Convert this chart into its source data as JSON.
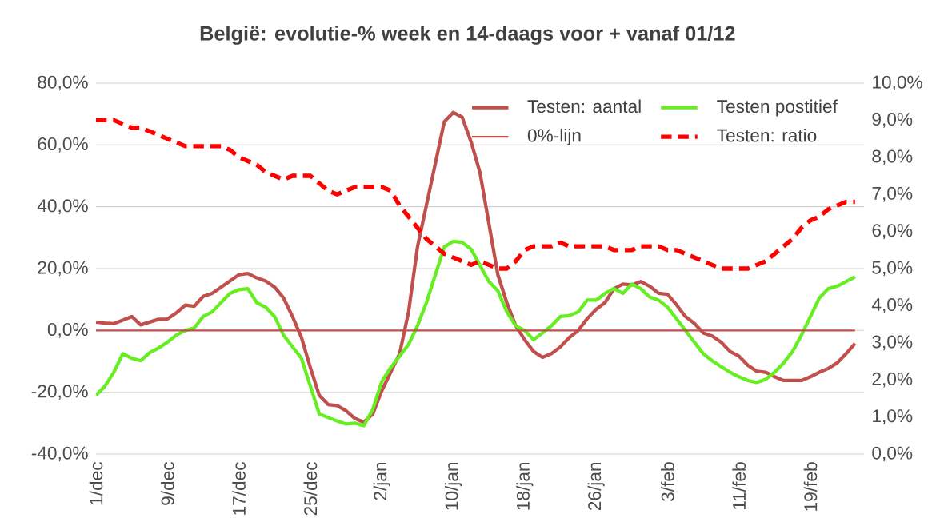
{
  "chart_data": {
    "type": "line",
    "title": "België: evolutie-%  week en 14-daags voor + vanaf 01/12",
    "categories": [
      "1/dec",
      null,
      null,
      null,
      null,
      null,
      null,
      null,
      "9/dec",
      null,
      null,
      null,
      null,
      null,
      null,
      null,
      "17/dec",
      null,
      null,
      null,
      null,
      null,
      null,
      null,
      "25/dec",
      null,
      null,
      null,
      null,
      null,
      null,
      null,
      "2/jan",
      null,
      null,
      null,
      null,
      null,
      null,
      null,
      "10/jan",
      null,
      null,
      null,
      null,
      null,
      null,
      null,
      "18/jan",
      null,
      null,
      null,
      null,
      null,
      null,
      null,
      "26/jan",
      null,
      null,
      null,
      null,
      null,
      null,
      null,
      "3/feb",
      null,
      null,
      null,
      null,
      null,
      null,
      null,
      "11/feb",
      null,
      null,
      null,
      null,
      null,
      null,
      null,
      "19/feb",
      null,
      null,
      null,
      null,
      null
    ],
    "series": [
      {
        "name": "Testen: aantal",
        "color": "#c0504d",
        "values": [
          2.7,
          2.4,
          2.2,
          3.3,
          4.5,
          1.8,
          2.7,
          3.6,
          3.7,
          5.7,
          8.2,
          7.8,
          11,
          12,
          14,
          16,
          18,
          18.4,
          17,
          16,
          14,
          10.5,
          4.5,
          -2.2,
          -12,
          -21,
          -24,
          -24.3,
          -26,
          -28.5,
          -29.7,
          -27,
          -19.5,
          -13.5,
          -7.5,
          6,
          27,
          40.5,
          54,
          67.5,
          70.5,
          69,
          61,
          51,
          34.5,
          18,
          9,
          1.5,
          -3,
          -6.8,
          -8.7,
          -7.5,
          -5.3,
          -2.3,
          0,
          3.8,
          6.8,
          9,
          13.5,
          15,
          14.7,
          15.8,
          14.3,
          12,
          11.7,
          8.3,
          4.5,
          2.3,
          -0.8,
          -1.8,
          -3.8,
          -6.8,
          -8.3,
          -11.3,
          -13.2,
          -13.5,
          -15,
          -16.2,
          -16.2,
          -16.2,
          -15,
          -13.5,
          -12.3,
          -10.5,
          -7.5,
          -4.2
        ]
      },
      {
        "name": "Testen postitief",
        "color": "#66ee22",
        "values": [
          -21,
          -18,
          -13.5,
          -7.5,
          -9,
          -9.8,
          -7.2,
          -5.7,
          -3.8,
          -1.5,
          0,
          0.8,
          4.5,
          6,
          9,
          12,
          13.2,
          13.5,
          9,
          7.5,
          4.5,
          -1.5,
          -5.3,
          -9,
          -18,
          -27,
          -28.2,
          -29.3,
          -30.3,
          -30,
          -30.8,
          -25.5,
          -16.5,
          -12,
          -8.3,
          -4.5,
          1.5,
          9,
          18,
          27,
          28.8,
          28.5,
          26.3,
          21,
          15.8,
          12.8,
          6,
          1.5,
          0,
          -3,
          -0.8,
          1.5,
          4.5,
          4.8,
          6,
          9.8,
          9.8,
          12,
          13.5,
          12,
          15,
          13.5,
          10.8,
          9.8,
          7.5,
          3.8,
          0,
          -3.8,
          -7.5,
          -9.8,
          -11.7,
          -13.5,
          -15,
          -16.2,
          -16.8,
          -15.8,
          -13.5,
          -10.5,
          -6.8,
          -1.5,
          4.5,
          10.5,
          13.5,
          14.3,
          15.8,
          17.3
        ]
      },
      {
        "name": "0%-lijn",
        "color": "#c0504d",
        "values": [
          0,
          0,
          0,
          0,
          0,
          0,
          0,
          0,
          0,
          0,
          0,
          0,
          0,
          0,
          0,
          0,
          0,
          0,
          0,
          0,
          0,
          0,
          0,
          0,
          0,
          0,
          0,
          0,
          0,
          0,
          0,
          0,
          0,
          0,
          0,
          0,
          0,
          0,
          0,
          0,
          0,
          0,
          0,
          0,
          0,
          0,
          0,
          0,
          0,
          0,
          0,
          0,
          0,
          0,
          0,
          0,
          0,
          0,
          0,
          0,
          0,
          0,
          0,
          0,
          0,
          0,
          0,
          0,
          0,
          0,
          0,
          0,
          0,
          0,
          0,
          0,
          0,
          0,
          0,
          0,
          0,
          0,
          0,
          0,
          0,
          0
        ]
      },
      {
        "name": "Testen: ratio",
        "color": "#ff0000",
        "axis": "y2",
        "line_style": "dashed",
        "values": [
          9.0,
          9.0,
          9.0,
          8.9,
          8.8,
          8.8,
          8.7,
          8.6,
          8.5,
          8.4,
          8.3,
          8.3,
          8.3,
          8.3,
          8.3,
          8.2,
          8.0,
          7.9,
          7.8,
          7.6,
          7.5,
          7.4,
          7.5,
          7.5,
          7.5,
          7.3,
          7.1,
          7.0,
          7.1,
          7.2,
          7.2,
          7.2,
          7.2,
          7.1,
          6.7,
          6.4,
          6.1,
          5.8,
          5.6,
          5.4,
          5.3,
          5.2,
          5.1,
          5.2,
          5.1,
          5.0,
          5.0,
          5.2,
          5.5,
          5.6,
          5.6,
          5.6,
          5.7,
          5.6,
          5.6,
          5.6,
          5.6,
          5.6,
          5.5,
          5.5,
          5.5,
          5.6,
          5.6,
          5.6,
          5.5,
          5.5,
          5.4,
          5.3,
          5.2,
          5.1,
          5.0,
          5.0,
          5.0,
          5.0,
          5.1,
          5.2,
          5.4,
          5.6,
          5.8,
          6.1,
          6.3,
          6.4,
          6.6,
          6.7,
          6.8,
          6.8
        ]
      }
    ],
    "ylim": [
      -40,
      80
    ],
    "yticks": [
      {
        "value": -40,
        "label": "-40,0%"
      },
      {
        "value": -20,
        "label": "-20,0%"
      },
      {
        "value": 0,
        "label": "0,0%"
      },
      {
        "value": 20,
        "label": "20,0%"
      },
      {
        "value": 40,
        "label": "40,0%"
      },
      {
        "value": 60,
        "label": "60,0%"
      },
      {
        "value": 80,
        "label": "80,0%"
      }
    ],
    "y2lim": [
      0,
      10
    ],
    "y2ticks": [
      {
        "value": 0,
        "label": "0,0%"
      },
      {
        "value": 1,
        "label": "1,0%"
      },
      {
        "value": 2,
        "label": "2,0%"
      },
      {
        "value": 3,
        "label": "3,0%"
      },
      {
        "value": 4,
        "label": "4,0%"
      },
      {
        "value": 5,
        "label": "5,0%"
      },
      {
        "value": 6,
        "label": "6,0%"
      },
      {
        "value": 7,
        "label": "7,0%"
      },
      {
        "value": 8,
        "label": "8,0%"
      },
      {
        "value": 9,
        "label": "9,0%"
      },
      {
        "value": 10,
        "label": "10,0%"
      }
    ],
    "grid": "y",
    "legend": "top right",
    "marker": "none",
    "line_style": "solid"
  }
}
